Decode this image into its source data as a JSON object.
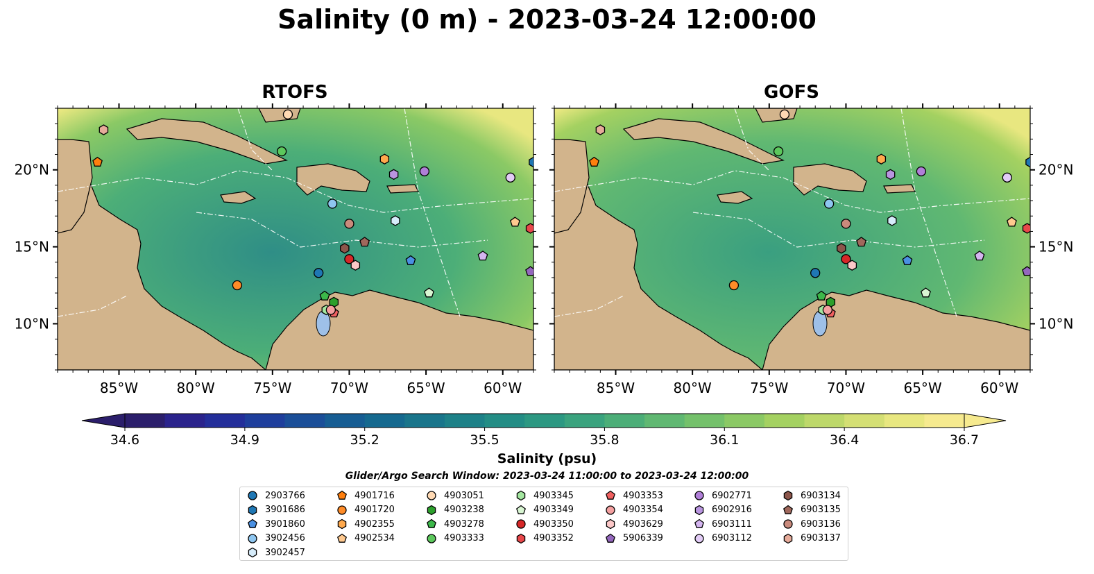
{
  "figure": {
    "title": "Salinity (0 m) - 2023-03-24 12:00:00",
    "panels": [
      {
        "title": "RTOFS"
      },
      {
        "title": "GOFS"
      }
    ],
    "colorbar": {
      "label": "Salinity (psu)",
      "ticks": [
        "34.6",
        "34.9",
        "35.2",
        "35.5",
        "35.8",
        "36.1",
        "36.4",
        "36.7"
      ],
      "colors": [
        "#2b1e6b",
        "#2a238c",
        "#232e9a",
        "#1e3e9c",
        "#1a4e98",
        "#165d93",
        "#15698f",
        "#19758b",
        "#1d8188",
        "#238d85",
        "#2c9882",
        "#3aa37e",
        "#4cae78",
        "#60b872",
        "#74c16b",
        "#8bc965",
        "#a4d161",
        "#bdd86a",
        "#d4df74",
        "#e8e780",
        "#f6ea8f"
      ],
      "extend": "both"
    },
    "search_window": "Glider/Argo Search Window: 2023-03-24 11:00:00 to 2023-03-24 12:00:00",
    "map": {
      "lon_range": [
        -89,
        -58
      ],
      "lat_range": [
        7,
        24
      ],
      "x_ticks": [
        "85°W",
        "80°W",
        "75°W",
        "70°W",
        "65°W",
        "60°W"
      ],
      "y_ticks": [
        "20°N",
        "15°N",
        "10°N"
      ],
      "land_color": "#d2b48c",
      "ocean_mid_color": "#3f9f84"
    }
  },
  "chart_data": {
    "type": "scatter",
    "title": "Salinity (0 m) - 2023-03-24 12:00:00",
    "subtitle": "Glider/Argo Search Window: 2023-03-24 11:00:00 to 2023-03-24 12:00:00",
    "panels": [
      "RTOFS",
      "GOFS"
    ],
    "colorbar_label": "Salinity (psu)",
    "colorbar_range": [
      34.6,
      36.7
    ],
    "xlim": [
      -89,
      -58
    ],
    "ylim": [
      7,
      24
    ],
    "series": [
      {
        "name": "2903766",
        "marker": "circle",
        "color": "#1f77b4",
        "lon": -72.0,
        "lat": 13.3
      },
      {
        "name": "3901686",
        "marker": "hexagon",
        "color": "#1f77b4",
        "lon": -58.0,
        "lat": 20.5
      },
      {
        "name": "3901860",
        "marker": "pentagon",
        "color": "#4a90e2",
        "lon": -66.0,
        "lat": 14.1
      },
      {
        "name": "3902456",
        "marker": "circle",
        "color": "#8ec6f0",
        "lon": -71.1,
        "lat": 17.8
      },
      {
        "name": "3902457",
        "marker": "hexagon",
        "color": "#d6ecfa",
        "lon": -67.0,
        "lat": 16.7
      },
      {
        "name": "4901716",
        "marker": "pentagon",
        "color": "#ff7f0e",
        "lon": -86.4,
        "lat": 20.5
      },
      {
        "name": "4901720",
        "marker": "circle",
        "color": "#ff8c28",
        "lon": -77.3,
        "lat": 12.5
      },
      {
        "name": "4902355",
        "marker": "hexagon",
        "color": "#ffa94d",
        "lon": -67.7,
        "lat": 20.7
      },
      {
        "name": "4902534",
        "marker": "pentagon",
        "color": "#ffc98f",
        "lon": -59.2,
        "lat": 16.6
      },
      {
        "name": "4903051",
        "marker": "circle",
        "color": "#ffd9b3",
        "lon": -74.0,
        "lat": 23.6
      },
      {
        "name": "4903238",
        "marker": "hexagon",
        "color": "#2ca02c",
        "lon": -71.0,
        "lat": 11.4
      },
      {
        "name": "4903278",
        "marker": "pentagon",
        "color": "#3cb84a",
        "lon": -71.6,
        "lat": 11.8
      },
      {
        "name": "4903333",
        "marker": "circle",
        "color": "#5cc85c",
        "lon": -74.4,
        "lat": 21.2
      },
      {
        "name": "4903345",
        "marker": "hexagon",
        "color": "#a4e6a0",
        "lon": -71.5,
        "lat": 10.9
      },
      {
        "name": "4903349",
        "marker": "pentagon",
        "color": "#d8f5d2",
        "lon": -64.8,
        "lat": 12.0
      },
      {
        "name": "4903350",
        "marker": "circle",
        "color": "#d62728",
        "lon": -70.0,
        "lat": 14.2
      },
      {
        "name": "4903352",
        "marker": "hexagon",
        "color": "#e8474a",
        "lon": -58.2,
        "lat": 16.2
      },
      {
        "name": "4903353",
        "marker": "pentagon",
        "color": "#f06060",
        "lon": -71.0,
        "lat": 10.7
      },
      {
        "name": "4903354",
        "marker": "circle",
        "color": "#f4a0a0",
        "lon": -71.2,
        "lat": 10.9
      },
      {
        "name": "4903629",
        "marker": "hexagon",
        "color": "#fcc8c8",
        "lon": -69.6,
        "lat": 13.8
      },
      {
        "name": "5906339",
        "marker": "pentagon",
        "color": "#9467bd",
        "lon": -58.2,
        "lat": 13.4
      },
      {
        "name": "6902771",
        "marker": "circle",
        "color": "#b07fd8",
        "lon": -65.1,
        "lat": 19.9
      },
      {
        "name": "6902916",
        "marker": "hexagon",
        "color": "#b995e0",
        "lon": -67.1,
        "lat": 19.7
      },
      {
        "name": "6903111",
        "marker": "pentagon",
        "color": "#d4b5f0",
        "lon": -61.3,
        "lat": 14.4
      },
      {
        "name": "6903112",
        "marker": "circle",
        "color": "#e2ccf6",
        "lon": -59.5,
        "lat": 19.5
      },
      {
        "name": "6903134",
        "marker": "hexagon",
        "color": "#8c564b",
        "lon": -70.3,
        "lat": 14.9
      },
      {
        "name": "6903135",
        "marker": "pentagon",
        "color": "#a0685c",
        "lon": -69.0,
        "lat": 15.3
      },
      {
        "name": "6903136",
        "marker": "circle",
        "color": "#c98a7c",
        "lon": -70.0,
        "lat": 16.5
      },
      {
        "name": "6903137",
        "marker": "hexagon",
        "color": "#e6ab9a",
        "lon": -86.0,
        "lat": 22.6
      }
    ]
  }
}
